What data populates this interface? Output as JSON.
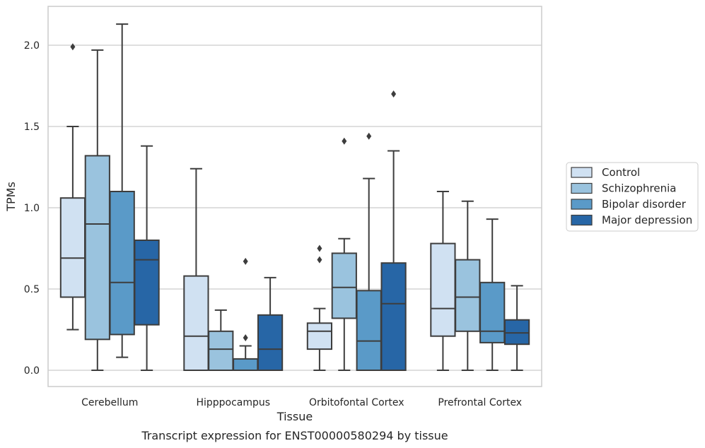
{
  "caption": "Transcript expression for ENST00000580294 by tissue",
  "chart_data": {
    "type": "box",
    "xlabel": "Tissue",
    "ylabel": "TPMs",
    "ylim": [
      -0.1,
      2.25
    ],
    "yticks": [
      0.0,
      0.5,
      1.0,
      1.5,
      2.0
    ],
    "ytick_labels": [
      "0.0",
      "0.5",
      "1.0",
      "1.5",
      "2.0"
    ],
    "grid": "horizontal",
    "legend_position": "right",
    "categories": [
      "Cerebellum",
      "Hipppocampus",
      "Orbitofontal Cortex",
      "Prefrontal Cortex"
    ],
    "series": [
      {
        "name": "Control",
        "color": "#d0e1f2",
        "boxes": [
          {
            "whislo": 0.25,
            "q1": 0.45,
            "median": 0.69,
            "q3": 1.06,
            "whishi": 1.5,
            "fliers": [
              1.99
            ]
          },
          {
            "whislo": 0.0,
            "q1": 0.0,
            "median": 0.21,
            "q3": 0.58,
            "whishi": 1.24,
            "fliers": []
          },
          {
            "whislo": 0.0,
            "q1": 0.13,
            "median": 0.24,
            "q3": 0.29,
            "whishi": 0.38,
            "fliers": [
              0.68,
              0.75
            ]
          },
          {
            "whislo": 0.0,
            "q1": 0.21,
            "median": 0.38,
            "q3": 0.78,
            "whishi": 1.1,
            "fliers": []
          }
        ]
      },
      {
        "name": "Schizophrenia",
        "color": "#9ac3de",
        "boxes": [
          {
            "whislo": 0.0,
            "q1": 0.19,
            "median": 0.9,
            "q3": 1.32,
            "whishi": 1.97,
            "fliers": []
          },
          {
            "whislo": 0.0,
            "q1": 0.0,
            "median": 0.13,
            "q3": 0.24,
            "whishi": 0.37,
            "fliers": []
          },
          {
            "whislo": 0.0,
            "q1": 0.32,
            "median": 0.51,
            "q3": 0.72,
            "whishi": 0.81,
            "fliers": [
              1.41
            ]
          },
          {
            "whislo": 0.0,
            "q1": 0.24,
            "median": 0.45,
            "q3": 0.68,
            "whishi": 1.04,
            "fliers": []
          }
        ]
      },
      {
        "name": "Bipolar disorder",
        "color": "#5a9ac8",
        "boxes": [
          {
            "whislo": 0.08,
            "q1": 0.22,
            "median": 0.54,
            "q3": 1.1,
            "whishi": 2.13,
            "fliers": []
          },
          {
            "whislo": 0.0,
            "q1": 0.0,
            "median": 0.0,
            "q3": 0.07,
            "whishi": 0.15,
            "fliers": [
              0.2,
              0.67
            ]
          },
          {
            "whislo": 0.0,
            "q1": 0.0,
            "median": 0.18,
            "q3": 0.49,
            "whishi": 1.18,
            "fliers": [
              1.44
            ]
          },
          {
            "whislo": 0.0,
            "q1": 0.17,
            "median": 0.24,
            "q3": 0.54,
            "whishi": 0.93,
            "fliers": []
          }
        ]
      },
      {
        "name": "Major depression",
        "color": "#2766a6",
        "boxes": [
          {
            "whislo": 0.0,
            "q1": 0.28,
            "median": 0.68,
            "q3": 0.8,
            "whishi": 1.38,
            "fliers": []
          },
          {
            "whislo": 0.0,
            "q1": 0.0,
            "median": 0.13,
            "q3": 0.34,
            "whishi": 0.57,
            "fliers": []
          },
          {
            "whislo": 0.0,
            "q1": 0.0,
            "median": 0.41,
            "q3": 0.66,
            "whishi": 1.35,
            "fliers": [
              1.7
            ]
          },
          {
            "whislo": 0.0,
            "q1": 0.16,
            "median": 0.23,
            "q3": 0.31,
            "whishi": 0.52,
            "fliers": []
          }
        ]
      }
    ]
  }
}
